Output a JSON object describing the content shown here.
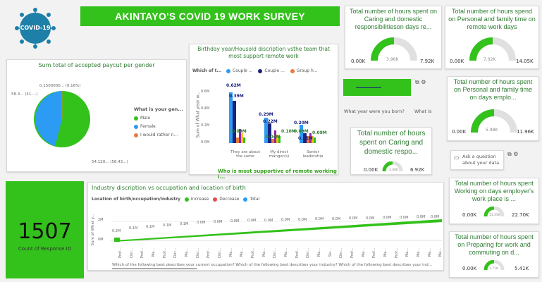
{
  "logo": {
    "text": "COVID-19"
  },
  "banner": {
    "title": "AKINTAYO'S COVID 19 WORK SURVEY"
  },
  "gauges": [
    {
      "id": "g1",
      "title": "Total number of hours spent on Caring and domestic responsibilitieson days re...",
      "min": "0.00K",
      "value": "3.96K",
      "max": "7.92K",
      "fraction": 0.5
    },
    {
      "id": "g2",
      "title": "Total number of hours spend on Personal and family time on remote work days",
      "min": "0.00K",
      "value": "7.02K",
      "max": "14.05K",
      "fraction": 0.5
    },
    {
      "id": "g3",
      "title": "Total number of hours spent on Personal and family time on days emplo...",
      "min": "0.00K",
      "value": "5.98K",
      "max": "11.96K",
      "fraction": 0.5
    },
    {
      "id": "g4",
      "title": "Total number of hours spent on Caring and domestic respo...",
      "min": "0.00K",
      "value": "3.46K",
      "max": "6.92K",
      "fraction": 0.5
    },
    {
      "id": "g5",
      "title": "Total number of hours spent Working on days employer's work place is ...",
      "min": "0.00K",
      "value": "11.35K",
      "max": "22.70K",
      "fraction": 0.5
    },
    {
      "id": "g6",
      "title": "Total number of hours spent on Preparing for work and commuting on d...",
      "min": "0.00K",
      "value": "2.71K",
      "max": "5.41K",
      "fraction": 0.5
    }
  ],
  "pie": {
    "title": "Sum total of accepted paycut per gender",
    "legend_title": "What is your gen...",
    "legend": [
      {
        "label": "Male",
        "color": "#33c11b"
      },
      {
        "label": "Female",
        "color": "#2b9bf4"
      },
      {
        "label": "I would rather n...",
        "color": "#e97b3d"
      }
    ],
    "labels": {
      "top": "0.1500000... (0.16%)",
      "left": "58.3... (41....)",
      "right": "54.120... (58.43...)"
    }
  },
  "birth_chart": {
    "title": "Birthday year/Housold discription vsthe team that most support remote work",
    "legend_title": "Which of t...",
    "legend": [
      {
        "label": "Couple ...",
        "color": "#2b9bf4"
      },
      {
        "label": "Couple ...",
        "color": "#1a237e"
      },
      {
        "label": "Group h...",
        "color": "#e97b3d"
      }
    ],
    "ylabel": "Sum of What year w...",
    "xlabel": "Who is most supportive of remote working i...",
    "yticks": [
      "0.6M",
      "0.4M",
      "0.2M",
      "0.0M"
    ],
    "categories": [
      "They are about the same",
      "My direct manger(s)",
      "Senior leadership"
    ],
    "data_labels": [
      "0.62M",
      "0.39M",
      "0.09M",
      "0.29M",
      "0.22M",
      "0.04M",
      "0.10M",
      "0.09M",
      "0.20M",
      "0.11M",
      "0.09M"
    ]
  },
  "slicer": {
    "label1": "What year were you born?",
    "label2": "What is"
  },
  "qa": {
    "label": "Ask a question about your data"
  },
  "count_card": {
    "value": "1507",
    "label": "Count of Response ID"
  },
  "waterfall": {
    "title": "Industry discription vs occupation and location of birth",
    "legend_title": "Location of birth/occupation/industry",
    "legend": [
      {
        "label": "Increase",
        "color": "#33c11b"
      },
      {
        "label": "Decrease",
        "color": "#e84b4b"
      },
      {
        "label": "Total",
        "color": "#2b9bf4"
      }
    ],
    "yticks": [
      "2M",
      "0M"
    ],
    "ylabel": "Sum of What y...",
    "xlabel": "Which of the following best describes your current occupation? Which of the following best describes your industry? Which of the following best describes your ind...",
    "data_labels": [
      "0.2M",
      "0.1M",
      "0.1M",
      "0.1M",
      "0.1M",
      "0.0M",
      "0.0M",
      "0.0M",
      "0.0M",
      "0.0M",
      "0.0M",
      "0.0M",
      "0.0M",
      "0.0M",
      "0.0M",
      "0.0M",
      "0.0M",
      "0.0M",
      "0.0M",
      "0.0M"
    ],
    "xticks": [
      "Prof...",
      "Cler...",
      "Prof...",
      "Ma...",
      "Prof...",
      "Cler...",
      "Ma...",
      "Cler...",
      "Prof...",
      "Cler...",
      "Ma...",
      "Ma...",
      "Prof...",
      "Ma...",
      "Cler...",
      "Ma...",
      "Prof...",
      "Cler...",
      "Ma...",
      "Ski...",
      "Cler...",
      "Prof...",
      "Ma...",
      "Prof...",
      "Ma...",
      "Prof...",
      "Ma...",
      "Ma...",
      "Ma...",
      "Ma..."
    ]
  },
  "colors": {
    "brand": "#33c11b",
    "blue": "#2b9bf4",
    "navy": "#1a237e",
    "orange": "#e97b3d",
    "red": "#e84b4b"
  }
}
